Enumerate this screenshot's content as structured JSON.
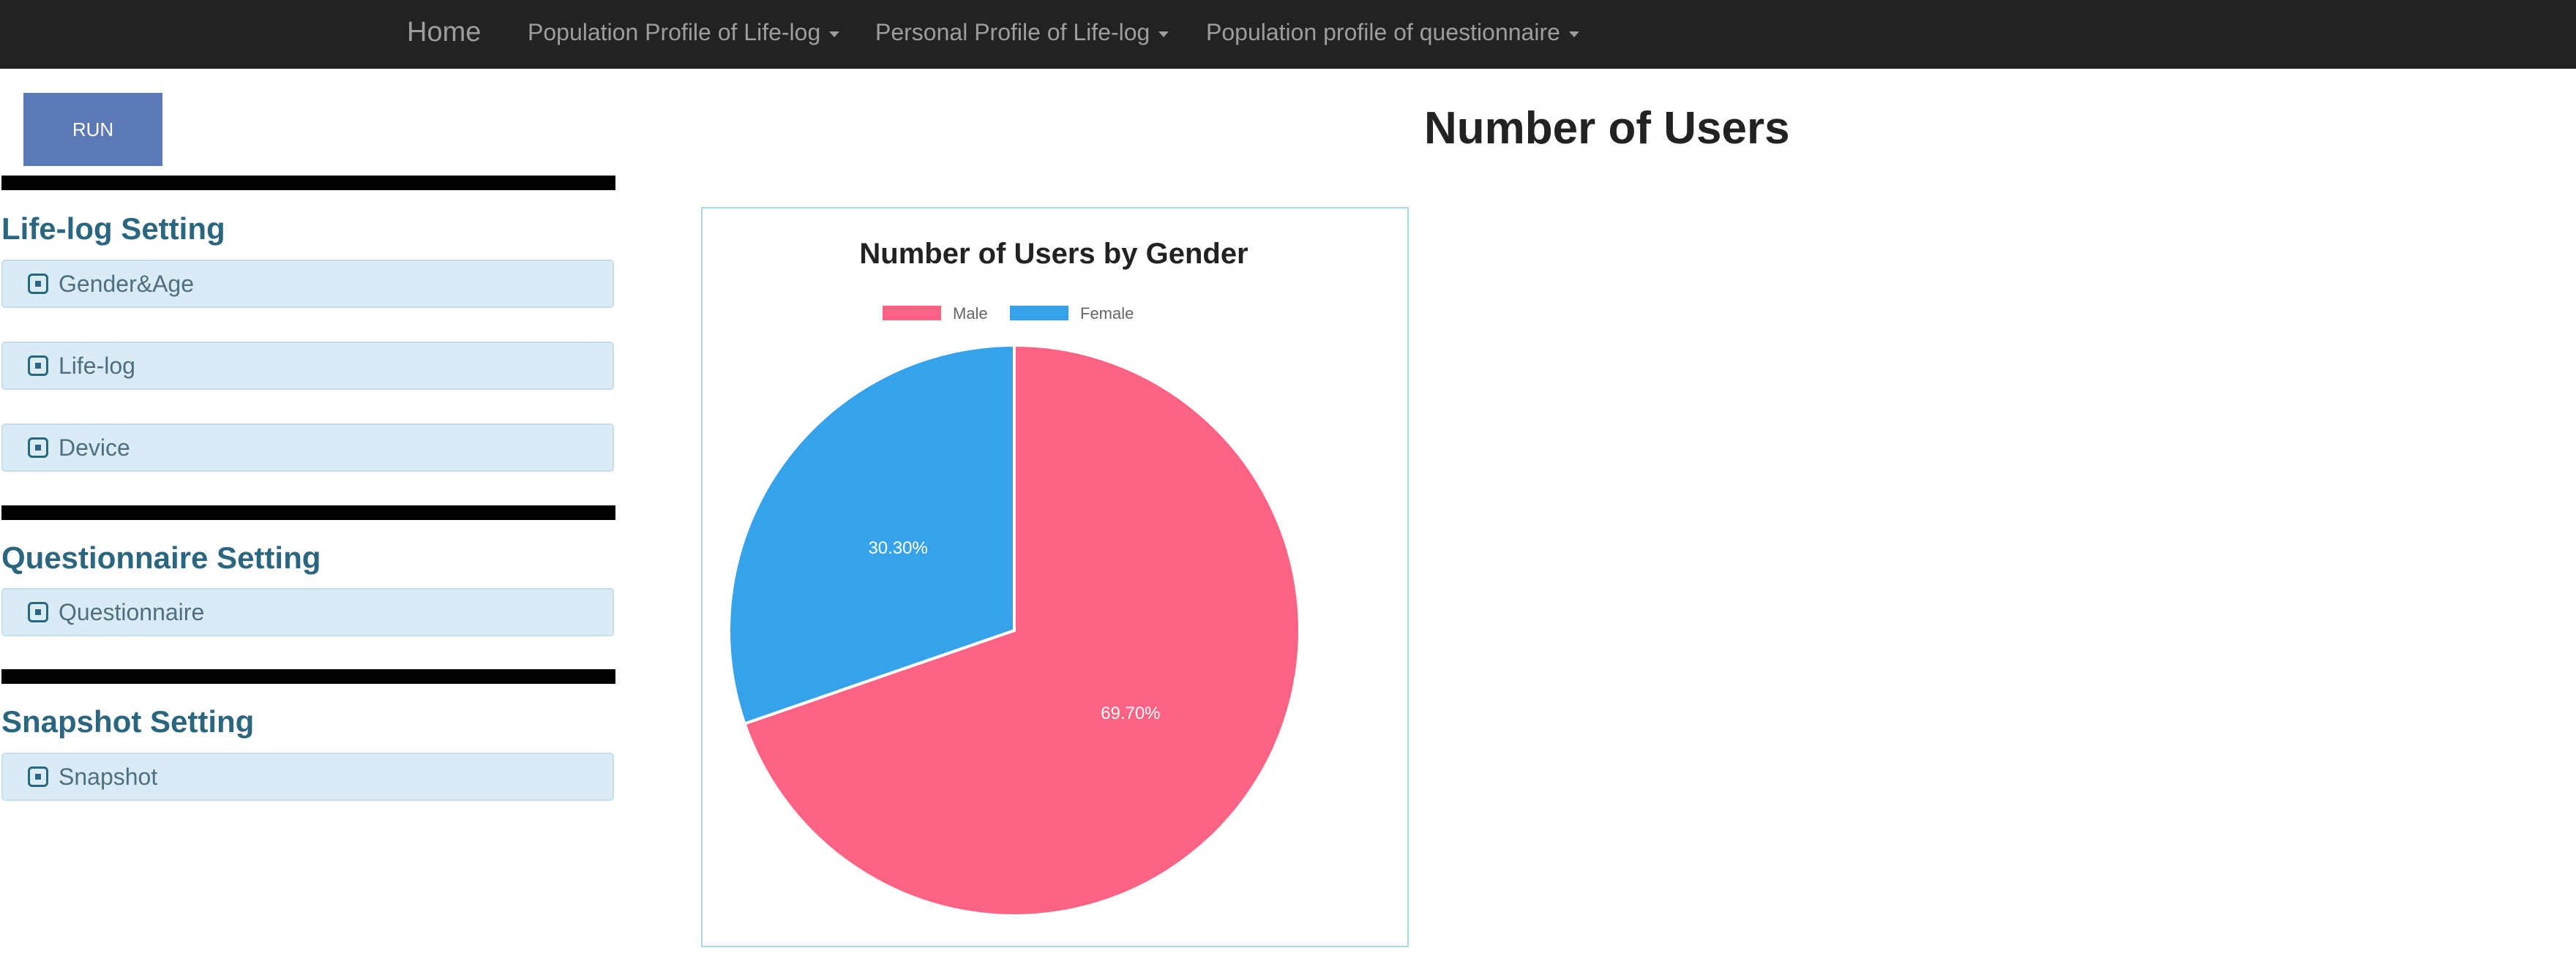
{
  "navbar": {
    "home": "Home",
    "menus": [
      {
        "label": "Population Profile of Life-log"
      },
      {
        "label": "Personal Profile of Life-log"
      },
      {
        "label": "Population profile of questionnaire"
      }
    ]
  },
  "sidebar": {
    "run_label": "RUN",
    "sections": [
      {
        "title": "Life-log Setting",
        "items": [
          {
            "label": "Gender&Age"
          },
          {
            "label": "Life-log"
          },
          {
            "label": "Device"
          }
        ]
      },
      {
        "title": "Questionnaire Setting",
        "items": [
          {
            "label": "Questionnaire"
          }
        ]
      },
      {
        "title": "Snapshot Setting",
        "items": [
          {
            "label": "Snapshot"
          }
        ]
      }
    ]
  },
  "main": {
    "title": "Number of Users"
  },
  "chart_data": {
    "type": "pie",
    "title": "Number of Users by Gender",
    "categories": [
      "Male",
      "Female"
    ],
    "values": [
      69.7,
      30.3
    ],
    "labels": [
      "69.70%",
      "30.30%"
    ],
    "colors": [
      "#ff6384",
      "#36a2eb"
    ],
    "legend": "top"
  },
  "colors": {
    "navbar_bg": "#222222",
    "run_button": "#5b7ab5",
    "section_title": "#2a6680",
    "accordion_bg": "#d9ecf5",
    "panel_border": "#a6d9ea"
  }
}
